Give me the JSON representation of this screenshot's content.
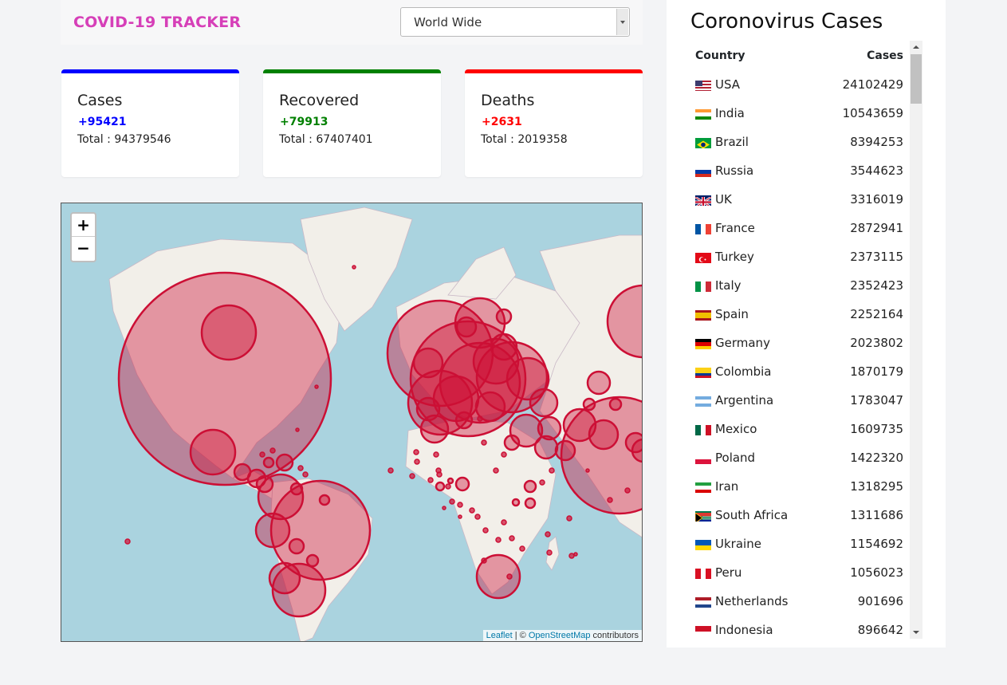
{
  "header": {
    "brand": "COVID-19 TRACKER",
    "country_select": {
      "value": "World Wide"
    }
  },
  "cards": [
    {
      "title": "Cases",
      "today": "+95421",
      "total": "Total : 94379546",
      "color": "#0000ff"
    },
    {
      "title": "Recovered",
      "today": "+79913",
      "total": "Total : 67407401",
      "color": "#008000"
    },
    {
      "title": "Deaths",
      "today": "+2631",
      "total": "Total : 2019358",
      "color": "#ff0000"
    }
  ],
  "map": {
    "zoom_in": "+",
    "zoom_out": "−",
    "attribution": {
      "leaflet": "Leaflet",
      "separator": " | © ",
      "osm": "OpenStreetMap",
      "suffix": " contributors"
    },
    "circle_color": "#cc0f35"
  },
  "panel": {
    "title": "Coronovirus Cases",
    "col_country": "Country",
    "col_cases": "Cases",
    "rows": [
      {
        "country": "USA",
        "cases": "24102429",
        "flag": "usa-flag-icon"
      },
      {
        "country": "India",
        "cases": "10543659",
        "flag": "india-flag-icon"
      },
      {
        "country": "Brazil",
        "cases": "8394253",
        "flag": "brazil-flag-icon"
      },
      {
        "country": "Russia",
        "cases": "3544623",
        "flag": "russia-flag-icon"
      },
      {
        "country": "UK",
        "cases": "3316019",
        "flag": "uk-flag-icon"
      },
      {
        "country": "France",
        "cases": "2872941",
        "flag": "france-flag-icon"
      },
      {
        "country": "Turkey",
        "cases": "2373115",
        "flag": "turkey-flag-icon"
      },
      {
        "country": "Italy",
        "cases": "2352423",
        "flag": "italy-flag-icon"
      },
      {
        "country": "Spain",
        "cases": "2252164",
        "flag": "spain-flag-icon"
      },
      {
        "country": "Germany",
        "cases": "2023802",
        "flag": "germany-flag-icon"
      },
      {
        "country": "Colombia",
        "cases": "1870179",
        "flag": "colombia-flag-icon"
      },
      {
        "country": "Argentina",
        "cases": "1783047",
        "flag": "argentina-flag-icon"
      },
      {
        "country": "Mexico",
        "cases": "1609735",
        "flag": "mexico-flag-icon"
      },
      {
        "country": "Poland",
        "cases": "1422320",
        "flag": "poland-flag-icon"
      },
      {
        "country": "Iran",
        "cases": "1318295",
        "flag": "iran-flag-icon"
      },
      {
        "country": "South Africa",
        "cases": "1311686",
        "flag": "south-africa-flag-icon"
      },
      {
        "country": "Ukraine",
        "cases": "1154692",
        "flag": "ukraine-flag-icon"
      },
      {
        "country": "Peru",
        "cases": "1056023",
        "flag": "peru-flag-icon"
      },
      {
        "country": "Netherlands",
        "cases": "901696",
        "flag": "netherlands-flag-icon"
      },
      {
        "country": "Indonesia",
        "cases": "896642",
        "flag": "indonesia-flag-icon"
      }
    ]
  }
}
